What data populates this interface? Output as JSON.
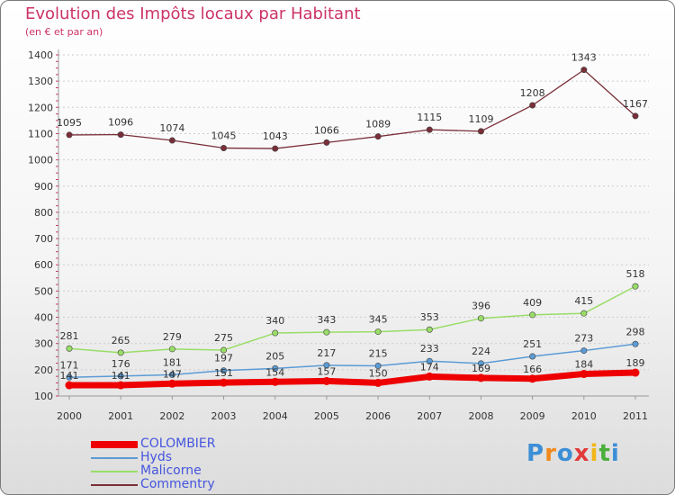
{
  "title": "Evolution des Impôts locaux par Habitant",
  "subtitle": "(en € et par an)",
  "logo": {
    "letters": [
      "P",
      "r",
      "o",
      "x",
      "i",
      "t",
      "i"
    ],
    "colors": [
      "#3c8fd6",
      "#f08a1e",
      "#3c8fd6",
      "#e23a3a",
      "#f2b61b",
      "#4caf3c",
      "#3c8fd6"
    ]
  },
  "chart_data": {
    "type": "line",
    "title": "Evolution des Impôts locaux par Habitant",
    "subtitle": "(en € et par an)",
    "xlabel": "",
    "ylabel": "",
    "categories": [
      "2000",
      "2001",
      "2002",
      "2003",
      "2004",
      "2005",
      "2006",
      "2007",
      "2008",
      "2009",
      "2010",
      "2011"
    ],
    "ylim": [
      100,
      1400
    ],
    "yticks": [
      "100",
      "200",
      "300",
      "400",
      "500",
      "600",
      "700",
      "800",
      "900",
      "1000",
      "1100",
      "1200",
      "1300",
      "1400"
    ],
    "grid": true,
    "series": [
      {
        "name": "COLOMBIER",
        "color": "#ee0000",
        "values": [
          141,
          141,
          147,
          151,
          154,
          157,
          150,
          174,
          169,
          166,
          184,
          189
        ],
        "labels": [
          "141",
          "141",
          "147",
          "151",
          "154",
          "157",
          "150",
          "174",
          "169",
          "166",
          "184",
          "189"
        ]
      },
      {
        "name": "Hyds",
        "color": "#5b9bd5",
        "values": [
          171,
          176,
          181,
          197,
          205,
          217,
          215,
          233,
          224,
          251,
          273,
          298
        ],
        "labels": [
          "171",
          "176",
          "181",
          "197",
          "205",
          "217",
          "215",
          "233",
          "224",
          "251",
          "273",
          "298"
        ]
      },
      {
        "name": "Malicorne",
        "color": "#99dd66",
        "values": [
          281,
          265,
          279,
          275,
          340,
          343,
          345,
          353,
          396,
          409,
          415,
          518
        ],
        "labels": [
          "281",
          "265",
          "279",
          "275",
          "340",
          "343",
          "345",
          "353",
          "396",
          "409",
          "415",
          "518"
        ]
      },
      {
        "name": "Commentry",
        "color": "#7a2e38",
        "values": [
          1095,
          1096,
          1074,
          1045,
          1043,
          1066,
          1089,
          1115,
          1109,
          1208,
          1343,
          1167
        ],
        "labels": [
          "1095",
          "1096",
          "1074",
          "1045",
          "1043",
          "1066",
          "1089",
          "1115",
          "1109",
          "1208",
          "1343",
          "1167"
        ]
      }
    ]
  }
}
